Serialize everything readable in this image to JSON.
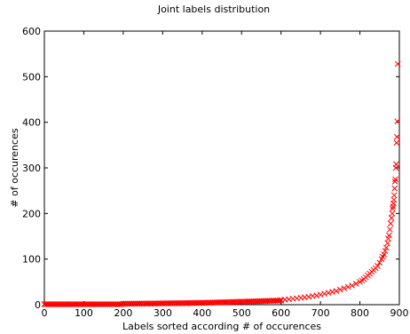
{
  "chart_data": {
    "type": "scatter",
    "title": "Joint labels distribution",
    "xlabel": "Labels sorted according # of occurences",
    "ylabel": "# of occurences",
    "xlim": [
      0,
      900
    ],
    "ylim": [
      0,
      600
    ],
    "xticks": [
      "0",
      "100",
      "200",
      "300",
      "400",
      "500",
      "600",
      "700",
      "800",
      "900"
    ],
    "yticks": [
      "0",
      "100",
      "200",
      "300",
      "400",
      "500",
      "600"
    ],
    "marker": "x",
    "color": "#ff0000",
    "grid": false,
    "series": [
      {
        "points": [
          [
            0,
            1
          ],
          [
            20,
            1
          ],
          [
            40,
            1
          ],
          [
            60,
            1
          ],
          [
            80,
            1
          ],
          [
            100,
            1
          ],
          [
            120,
            1
          ],
          [
            140,
            1
          ],
          [
            160,
            1
          ],
          [
            180,
            1
          ],
          [
            200,
            2
          ],
          [
            220,
            2
          ],
          [
            240,
            2
          ],
          [
            260,
            2
          ],
          [
            280,
            2
          ],
          [
            300,
            3
          ],
          [
            320,
            3
          ],
          [
            340,
            3
          ],
          [
            360,
            3
          ],
          [
            380,
            4
          ],
          [
            400,
            4
          ],
          [
            420,
            4
          ],
          [
            440,
            5
          ],
          [
            460,
            5
          ],
          [
            480,
            6
          ],
          [
            500,
            6
          ],
          [
            520,
            7
          ],
          [
            540,
            7
          ],
          [
            560,
            8
          ],
          [
            580,
            9
          ],
          [
            600,
            10
          ],
          [
            610,
            11
          ],
          [
            620,
            12
          ],
          [
            630,
            13
          ],
          [
            640,
            14
          ],
          [
            650,
            15
          ],
          [
            660,
            16
          ],
          [
            670,
            17
          ],
          [
            680,
            19
          ],
          [
            690,
            20
          ],
          [
            700,
            22
          ],
          [
            710,
            24
          ],
          [
            720,
            26
          ],
          [
            730,
            28
          ],
          [
            740,
            30
          ],
          [
            750,
            33
          ],
          [
            760,
            36
          ],
          [
            770,
            39
          ],
          [
            780,
            42
          ],
          [
            790,
            46
          ],
          [
            800,
            50
          ],
          [
            805,
            53
          ],
          [
            810,
            56
          ],
          [
            815,
            60
          ],
          [
            820,
            64
          ],
          [
            825,
            68
          ],
          [
            830,
            72
          ],
          [
            835,
            76
          ],
          [
            840,
            80
          ],
          [
            845,
            85
          ],
          [
            850,
            92
          ],
          [
            855,
            100
          ],
          [
            858,
            105
          ],
          [
            861,
            110
          ],
          [
            864,
            118
          ],
          [
            867,
            125
          ],
          [
            870,
            135
          ],
          [
            872,
            145
          ],
          [
            874,
            152
          ],
          [
            876,
            165
          ],
          [
            878,
            178
          ],
          [
            880,
            190
          ],
          [
            882,
            200
          ],
          [
            883,
            210
          ],
          [
            884,
            215
          ],
          [
            885,
            222
          ],
          [
            886,
            230
          ],
          [
            887,
            240
          ],
          [
            888,
            255
          ],
          [
            889,
            270
          ],
          [
            890,
            275
          ],
          [
            891,
            300
          ],
          [
            892,
            308
          ],
          [
            893,
            355
          ],
          [
            894,
            368
          ],
          [
            895,
            402
          ],
          [
            896,
            528
          ]
        ]
      }
    ]
  }
}
